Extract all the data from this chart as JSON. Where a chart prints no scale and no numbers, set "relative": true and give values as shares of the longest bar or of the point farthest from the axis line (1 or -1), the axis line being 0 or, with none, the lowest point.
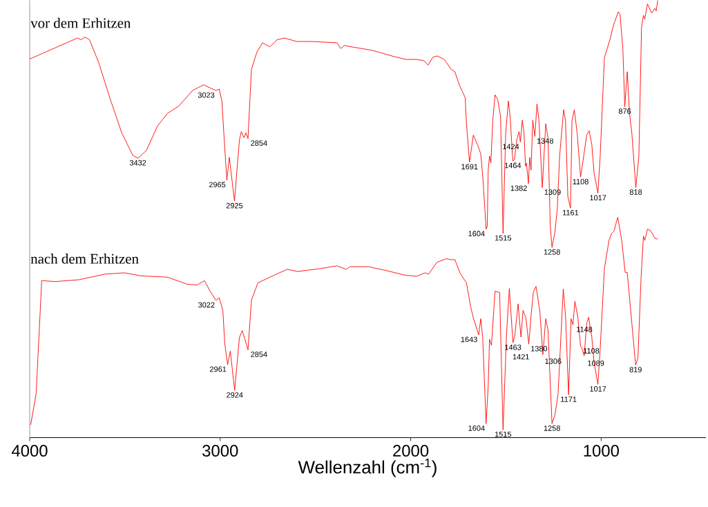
{
  "chart_data": {
    "type": "line",
    "relative": true,
    "xlabel": "Wellenzahl (cm$^{-1}$)",
    "xlim": [
      4000,
      450
    ],
    "xticks": [
      4000,
      3000,
      2000,
      1000
    ],
    "series": [
      {
        "name": "vor dem Erhitzen",
        "color": "#ff0000",
        "x": [
          4000,
          3749,
          3730,
          3710,
          3686,
          3638,
          3580,
          3517,
          3459,
          3432,
          3387,
          3329,
          3276,
          3218,
          3145,
          3087,
          3049,
          3023,
          3005,
          2991,
          2981,
          2965,
          2952,
          2925,
          2899,
          2889,
          2875,
          2865,
          2854,
          2836,
          2807,
          2778,
          2739,
          2701,
          2662,
          2599,
          2517,
          2387,
          2367,
          2348,
          2314,
          2203,
          2083,
          2025,
          1969,
          1930,
          1908,
          1884,
          1860,
          1823,
          1787,
          1768,
          1743,
          1714,
          1707,
          1691,
          1671,
          1649,
          1632,
          1620,
          1604,
          1598,
          1593,
          1586,
          1579,
          1569,
          1557,
          1543,
          1528,
          1515,
          1501,
          1487,
          1477,
          1464,
          1455,
          1443,
          1431,
          1424,
          1414,
          1405,
          1397,
          1392,
          1382,
          1375,
          1368,
          1359,
          1348,
          1337,
          1327,
          1309,
          1291,
          1279,
          1267,
          1258,
          1242,
          1230,
          1218,
          1197,
          1187,
          1175,
          1161,
          1153,
          1141,
          1126,
          1108,
          1090,
          1076,
          1063,
          1049,
          1037,
          1017,
          1005,
          983,
          968,
          952,
          935,
          910,
          901,
          886,
          876,
          863,
          851,
          839,
          818,
          802,
          788,
          778,
          771,
          757,
          735,
          718,
          711,
          703
        ],
        "values": [
          0.866,
          0.914,
          0.91,
          0.916,
          0.91,
          0.858,
          0.778,
          0.697,
          0.646,
          0.639,
          0.657,
          0.713,
          0.742,
          0.758,
          0.794,
          0.807,
          0.799,
          0.794,
          0.797,
          0.77,
          0.697,
          0.589,
          0.641,
          0.541,
          0.681,
          0.7,
          0.686,
          0.697,
          0.684,
          0.842,
          0.882,
          0.903,
          0.894,
          0.91,
          0.914,
          0.906,
          0.906,
          0.903,
          0.89,
          0.897,
          0.894,
          0.886,
          0.871,
          0.865,
          0.865,
          0.862,
          0.852,
          0.87,
          0.873,
          0.865,
          0.842,
          0.837,
          0.805,
          0.778,
          0.718,
          0.63,
          0.692,
          0.67,
          0.649,
          0.589,
          0.477,
          0.483,
          0.612,
          0.644,
          0.628,
          0.725,
          0.784,
          0.773,
          0.734,
          0.467,
          0.697,
          0.77,
          0.729,
          0.633,
          0.636,
          0.681,
          0.7,
          0.676,
          0.726,
          0.697,
          0.621,
          0.628,
          0.581,
          0.641,
          0.612,
          0.726,
          0.689,
          0.763,
          0.729,
          0.572,
          0.718,
          0.686,
          0.483,
          0.435,
          0.472,
          0.525,
          0.644,
          0.75,
          0.725,
          0.552,
          0.525,
          0.725,
          0.75,
          0.697,
          0.596,
          0.649,
          0.692,
          0.702,
          0.67,
          0.605,
          0.559,
          0.644,
          0.869,
          0.89,
          0.913,
          0.944,
          0.974,
          0.968,
          0.89,
          0.757,
          0.837,
          0.741,
          0.697,
          0.572,
          0.644,
          0.939,
          0.966,
          0.957,
          0.992,
          0.971,
          0.982,
          0.976,
          1
        ]
      },
      {
        "name": "nach dem Erhitzen",
        "color": "#ff0000",
        "x": [
          3995,
          3966,
          3937,
          3865,
          3744,
          3604,
          3503,
          3416,
          3276,
          3174,
          3121,
          3082,
          3053,
          3022,
          3005,
          2986,
          2976,
          2961,
          2947,
          2924,
          2899,
          2884,
          2854,
          2836,
          2802,
          2739,
          2648,
          2594,
          2483,
          2387,
          2338,
          2319,
          2223,
          2136,
          2034,
          1969,
          1925,
          1906,
          1862,
          1814,
          1785,
          1768,
          1739,
          1707,
          1685,
          1671,
          1643,
          1632,
          1622,
          1604,
          1593,
          1586,
          1576,
          1557,
          1533,
          1515,
          1497,
          1482,
          1463,
          1453,
          1436,
          1421,
          1410,
          1395,
          1380,
          1368,
          1356,
          1342,
          1322,
          1306,
          1291,
          1279,
          1258,
          1242,
          1226,
          1199,
          1187,
          1171,
          1158,
          1148,
          1138,
          1122,
          1108,
          1102,
          1089,
          1076,
          1066,
          1049,
          1037,
          1017,
          1005,
          983,
          959,
          945,
          933,
          913,
          892,
          874,
          863,
          839,
          819,
          807,
          790,
          778,
          771,
          757,
          740,
          718,
          703
        ],
        "values": [
          0.029,
          0.101,
          0.359,
          0.357,
          0.361,
          0.374,
          0.377,
          0.37,
          0.367,
          0.351,
          0.349,
          0.359,
          0.335,
          0.314,
          0.32,
          0.291,
          0.216,
          0.167,
          0.198,
          0.108,
          0.229,
          0.245,
          0.201,
          0.314,
          0.354,
          0.367,
          0.385,
          0.38,
          0.386,
          0.393,
          0.385,
          0.391,
          0.391,
          0.383,
          0.372,
          0.369,
          0.377,
          0.374,
          0.401,
          0.409,
          0.407,
          0.407,
          0.375,
          0.354,
          0.299,
          0.274,
          0.235,
          0.272,
          0.23,
          0.032,
          0.118,
          0.225,
          0.211,
          0.335,
          0.332,
          0.018,
          0.235,
          0.341,
          0.217,
          0.235,
          0.306,
          0.23,
          0.291,
          0.274,
          0.214,
          0.279,
          0.332,
          0.346,
          0.29,
          0.19,
          0.272,
          0.246,
          0.032,
          0.053,
          0.101,
          0.34,
          0.279,
          0.098,
          0.272,
          0.258,
          0.312,
          0.274,
          0.209,
          0.206,
          0.187,
          0.262,
          0.275,
          0.23,
          0.171,
          0.122,
          0.203,
          0.386,
          0.451,
          0.467,
          0.472,
          0.504,
          0.451,
          0.378,
          0.378,
          0.262,
          0.166,
          0.182,
          0.37,
          0.461,
          0.451,
          0.477,
          0.473,
          0.456,
          0.454
        ]
      }
    ],
    "annotations": [
      {
        "text": "3432",
        "x": 3432,
        "y": 0.639
      },
      {
        "text": "3023",
        "x": 3023,
        "y": 0.794
      },
      {
        "text": "2965",
        "x": 2965,
        "y": 0.589
      },
      {
        "text": "2925",
        "x": 2925,
        "y": 0.541
      },
      {
        "text": "2854",
        "x": 2854,
        "y": 0.684
      },
      {
        "text": "1691",
        "x": 1691,
        "y": 0.63
      },
      {
        "text": "1604",
        "x": 1604,
        "y": 0.477
      },
      {
        "text": "1515",
        "x": 1515,
        "y": 0.467
      },
      {
        "text": "1464",
        "x": 1464,
        "y": 0.633
      },
      {
        "text": "1424",
        "x": 1424,
        "y": 0.676
      },
      {
        "text": "1382",
        "x": 1382,
        "y": 0.581
      },
      {
        "text": "1348",
        "x": 1348,
        "y": 0.689
      },
      {
        "text": "1309",
        "x": 1309,
        "y": 0.572
      },
      {
        "text": "1258",
        "x": 1258,
        "y": 0.435
      },
      {
        "text": "1161",
        "x": 1161,
        "y": 0.525
      },
      {
        "text": "1108",
        "x": 1108,
        "y": 0.596
      },
      {
        "text": "1017",
        "x": 1017,
        "y": 0.559
      },
      {
        "text": "876",
        "x": 876,
        "y": 0.757
      },
      {
        "text": "818",
        "x": 818,
        "y": 0.572
      },
      {
        "text": "3022",
        "x": 3022,
        "y": 0.314
      },
      {
        "text": "2961",
        "x": 2961,
        "y": 0.167
      },
      {
        "text": "2924",
        "x": 2924,
        "y": 0.108
      },
      {
        "text": "2854",
        "x": 2854,
        "y": 0.201
      },
      {
        "text": "1643",
        "x": 1643,
        "y": 0.235
      },
      {
        "text": "1604",
        "x": 1604,
        "y": 0.032
      },
      {
        "text": "1515",
        "x": 1515,
        "y": 0.018
      },
      {
        "text": "1463",
        "x": 1463,
        "y": 0.217
      },
      {
        "text": "1421",
        "x": 1421,
        "y": 0.23
      },
      {
        "text": "1380",
        "x": 1380,
        "y": 0.214
      },
      {
        "text": "1306",
        "x": 1306,
        "y": 0.19
      },
      {
        "text": "1258",
        "x": 1258,
        "y": 0.032
      },
      {
        "text": "1171",
        "x": 1171,
        "y": 0.098
      },
      {
        "text": "1148",
        "x": 1148,
        "y": 0.258
      },
      {
        "text": "1108",
        "x": 1108,
        "y": 0.209
      },
      {
        "text": "1089",
        "x": 1089,
        "y": 0.187
      },
      {
        "text": "1017",
        "x": 1017,
        "y": 0.122
      },
      {
        "text": "819",
        "x": 819,
        "y": 0.166
      }
    ]
  }
}
